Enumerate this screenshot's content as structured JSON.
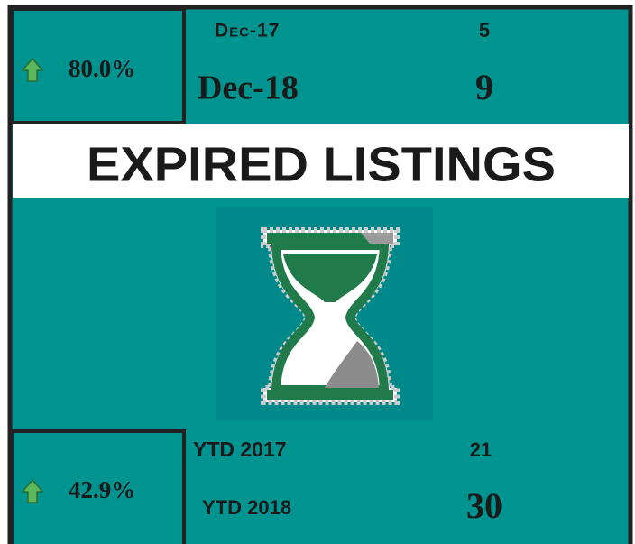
{
  "monthly": {
    "change": "80.0%",
    "previous": {
      "label": "Dec-17",
      "value": "5"
    },
    "current": {
      "label": "Dec-18",
      "value": "9"
    }
  },
  "title": "EXPIRED LISTINGS",
  "ytd": {
    "change": "42.9%",
    "previous": {
      "label": "YTD 2017",
      "value": "21"
    },
    "current": {
      "label": "YTD 2018",
      "value": "30"
    }
  }
}
